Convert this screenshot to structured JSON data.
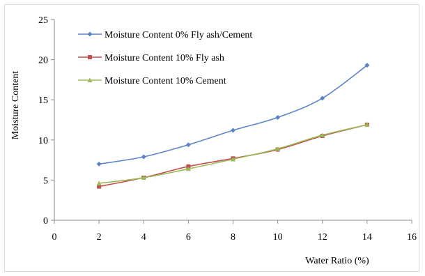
{
  "chart_data": {
    "type": "line",
    "title": "",
    "xlabel": "Water Ratio (%)",
    "ylabel": "Moisture Content",
    "xlim": [
      0,
      16
    ],
    "ylim": [
      0,
      25
    ],
    "xticks": [
      0,
      2,
      4,
      6,
      8,
      10,
      12,
      14,
      16
    ],
    "yticks": [
      0,
      5,
      10,
      15,
      20,
      25
    ],
    "grid": false,
    "legend": "top-left inside plot",
    "series": [
      {
        "name": "Moisture Content 0% Fly ash/Cement",
        "color": "#5b84c4",
        "marker": "diamond",
        "x": [
          2,
          4,
          6,
          8,
          10,
          12,
          14
        ],
        "y": [
          7.0,
          7.9,
          9.4,
          11.2,
          12.8,
          15.2,
          19.3
        ]
      },
      {
        "name": "Moisture Content 10% Fly ash",
        "color": "#c0504d",
        "marker": "square",
        "x": [
          2,
          4,
          6,
          8,
          10,
          12,
          14
        ],
        "y": [
          4.2,
          5.3,
          6.7,
          7.7,
          8.8,
          10.5,
          11.9
        ]
      },
      {
        "name": "Moisture Content 10% Cement",
        "color": "#9bbb59",
        "marker": "triangle",
        "x": [
          2,
          4,
          6,
          8,
          10,
          12,
          14
        ],
        "y": [
          4.6,
          5.3,
          6.4,
          7.6,
          8.9,
          10.6,
          11.9
        ]
      }
    ]
  }
}
